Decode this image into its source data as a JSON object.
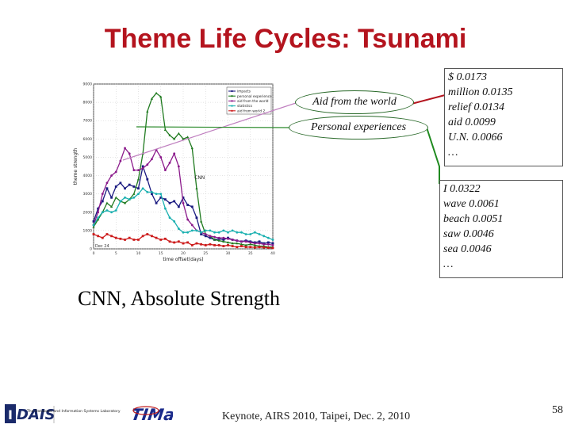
{
  "slide": {
    "title": "Theme Life Cycles: Tsunami",
    "subtitle": "CNN, Absolute Strength",
    "footer": "Keynote, AIRS 2010, Taipei, Dec. 2, 2010",
    "page_number": "58"
  },
  "callouts": {
    "oval1": "Aid from the world",
    "oval2": "Personal experiences",
    "box1": [
      "$  0.0173",
      "million  0.0135",
      "relief 0.0134",
      "aid 0.0099",
      "U.N.  0.0066",
      "…"
    ],
    "box2": [
      "I  0.0322",
      "wave  0.0061",
      "beach 0.0051",
      "saw 0.0046",
      "sea  0.0046",
      "…"
    ]
  },
  "logos": {
    "dais_text": "DAIS",
    "dais_sub": "The Database and Information Systems Laboratory",
    "timan_text": "TIMan"
  },
  "chart_data": {
    "type": "line",
    "xlabel": "time offset(days)",
    "ylabel": "theme strength",
    "xlim": [
      0,
      40
    ],
    "ylim": [
      0,
      9000
    ],
    "x_ticks": [
      "0",
      "5",
      "10",
      "15",
      "20",
      "25",
      "30",
      "35",
      "40"
    ],
    "y_ticks": [
      "0",
      "1000",
      "2000",
      "3000",
      "4000",
      "5000",
      "6000",
      "7000",
      "8000",
      "9000"
    ],
    "annotations": [
      "CNN",
      "Dec 24"
    ],
    "grid": true,
    "legend": "top-right",
    "colors": {
      "impacts": "#1a1a80",
      "personal experience": "#1f7a1f",
      "aid from the world": "#8b1a8b",
      "statistics": "#1ab0b0",
      "aid from world 2": "#cc1a1a"
    },
    "series": [
      {
        "name": "impacts",
        "x": [
          0,
          1,
          2,
          3,
          4,
          5,
          6,
          7,
          8,
          9,
          10,
          11,
          12,
          13,
          14,
          15,
          16,
          17,
          18,
          19,
          20,
          21,
          22,
          23,
          24,
          25,
          26,
          27,
          28,
          29,
          30,
          31,
          32,
          33,
          34,
          35,
          36,
          37,
          38,
          39,
          40
        ],
        "values": [
          1500,
          2200,
          2600,
          3300,
          2800,
          3400,
          3600,
          3300,
          3500,
          3400,
          3300,
          4500,
          3800,
          3000,
          2500,
          2800,
          2700,
          2500,
          2600,
          2300,
          2800,
          2400,
          2300,
          1700,
          800,
          700,
          600,
          500,
          550,
          500,
          600,
          500,
          450,
          400,
          450,
          400,
          350,
          400,
          300,
          350,
          300
        ]
      },
      {
        "name": "personal experience",
        "x": [
          0,
          1,
          2,
          3,
          4,
          5,
          6,
          7,
          8,
          9,
          10,
          11,
          12,
          13,
          14,
          15,
          16,
          17,
          18,
          19,
          20,
          21,
          22,
          23,
          24,
          25,
          26,
          27,
          28,
          29,
          30,
          31,
          32,
          33,
          34,
          35,
          36,
          37,
          38,
          39,
          40
        ],
        "values": [
          1200,
          1600,
          2000,
          2500,
          2300,
          2800,
          2600,
          2500,
          2700,
          3000,
          3800,
          5200,
          7500,
          8200,
          8500,
          8300,
          6500,
          6200,
          6000,
          6300,
          6000,
          6100,
          5500,
          3300,
          1500,
          800,
          700,
          500,
          450,
          400,
          350,
          300,
          300,
          250,
          200,
          250,
          200,
          150,
          150,
          100,
          100
        ]
      },
      {
        "name": "aid from the world",
        "x": [
          0,
          1,
          2,
          3,
          4,
          5,
          6,
          7,
          8,
          9,
          10,
          11,
          12,
          13,
          14,
          15,
          16,
          17,
          18,
          19,
          20,
          21,
          22,
          23,
          24,
          25,
          26,
          27,
          28,
          29,
          30,
          31,
          32,
          33,
          34,
          35,
          36,
          37,
          38,
          39,
          40
        ],
        "values": [
          1300,
          2000,
          3000,
          3600,
          4000,
          4200,
          4800,
          5500,
          5200,
          4300,
          4300,
          4400,
          4600,
          4900,
          5400,
          5000,
          4300,
          4700,
          5200,
          4500,
          2500,
          1600,
          1300,
          1000,
          900,
          800,
          700,
          650,
          600,
          600,
          550,
          500,
          450,
          400,
          400,
          350,
          300,
          300,
          250,
          250,
          200
        ]
      },
      {
        "name": "statistics",
        "x": [
          0,
          1,
          2,
          3,
          4,
          5,
          6,
          7,
          8,
          9,
          10,
          11,
          12,
          13,
          14,
          15,
          16,
          17,
          18,
          19,
          20,
          21,
          22,
          23,
          24,
          25,
          26,
          27,
          28,
          29,
          30,
          31,
          32,
          33,
          34,
          35,
          36,
          37,
          38,
          39,
          40
        ],
        "values": [
          1300,
          1700,
          2000,
          2100,
          2000,
          2100,
          2600,
          2800,
          2700,
          2800,
          3000,
          3300,
          3100,
          3100,
          3000,
          3000,
          2200,
          1700,
          1500,
          1100,
          900,
          900,
          1000,
          1000,
          900,
          1000,
          1000,
          900,
          900,
          1000,
          900,
          1000,
          900,
          900,
          800,
          800,
          900,
          800,
          700,
          600,
          500
        ]
      },
      {
        "name": "aid from world 2",
        "x": [
          0,
          1,
          2,
          3,
          4,
          5,
          6,
          7,
          8,
          9,
          10,
          11,
          12,
          13,
          14,
          15,
          16,
          17,
          18,
          19,
          20,
          21,
          22,
          23,
          24,
          25,
          26,
          27,
          28,
          29,
          30,
          31,
          32,
          33,
          34,
          35,
          36,
          37,
          38,
          39,
          40
        ],
        "values": [
          800,
          700,
          600,
          800,
          700,
          600,
          550,
          500,
          600,
          500,
          500,
          700,
          800,
          700,
          600,
          500,
          550,
          400,
          350,
          400,
          300,
          350,
          200,
          300,
          250,
          200,
          250,
          200,
          200,
          150,
          200,
          150,
          100,
          150,
          100,
          100,
          80,
          100,
          80,
          60,
          50
        ]
      }
    ]
  }
}
